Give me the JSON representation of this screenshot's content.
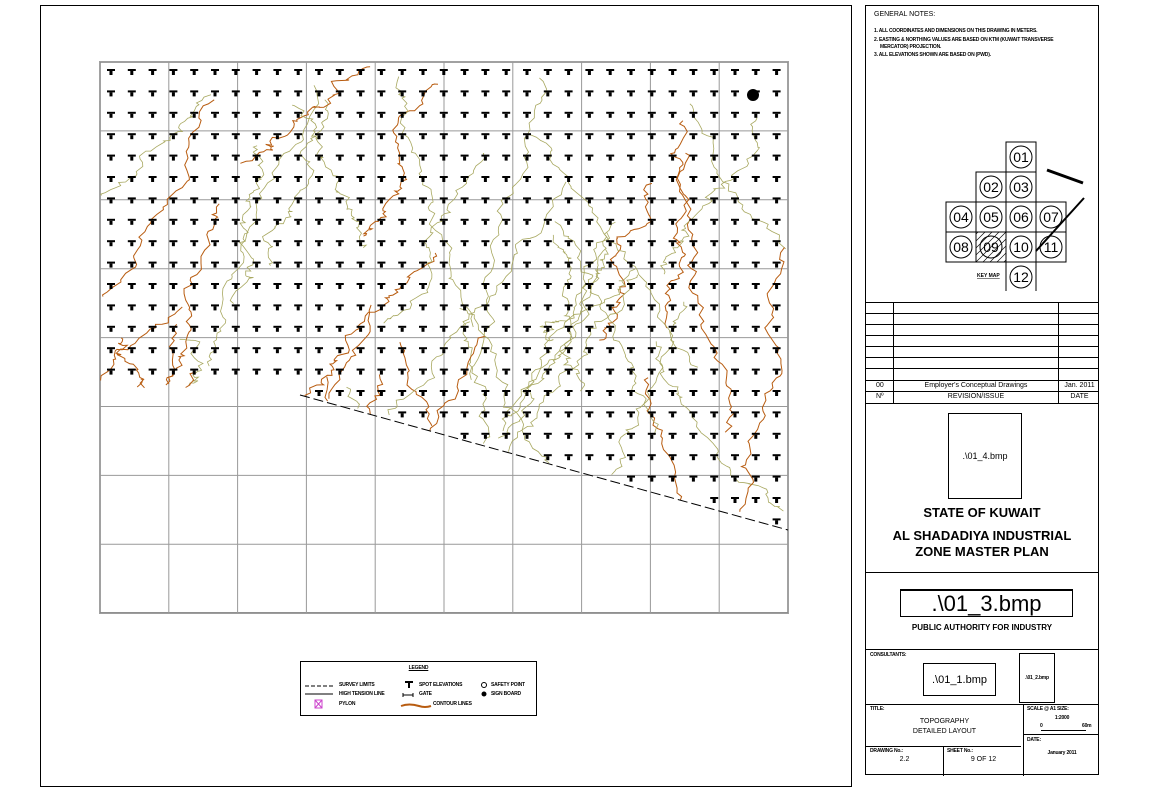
{
  "general_notes": {
    "heading": "GENERAL NOTES:",
    "items": [
      "1. ALL COORDINATES AND DIMENSIONS ON THIS DRAWING IN METERS.",
      "2. EASTING & NORTHING VALUES ARE BASED ON KTM (KUWAIT TRANSVERSE",
      "MERCATOR) PROJECTION.",
      "3. ALL ELEVATIONS SHOWN ARE BASED ON (PWD)."
    ]
  },
  "key_map": {
    "label": "KEY MAP",
    "sheets": [
      "01",
      "02",
      "03",
      "04",
      "05",
      "06",
      "07",
      "08",
      "09",
      "10",
      "11",
      "12"
    ],
    "current_sheet": "09"
  },
  "revision_table": {
    "rows": [
      {
        "no": "00",
        "description": "Employer's Conceptual Drawings",
        "date": "Jan. 2011"
      }
    ],
    "headers": {
      "no": "Nº",
      "description": "REVISION/ISSUE",
      "date": "DATE"
    }
  },
  "client": {
    "logo_placeholder": ".\\01_4.bmp",
    "line1": "STATE OF KUWAIT",
    "line2": "AL SHADADIYA INDUSTRIAL",
    "line3": "ZONE MASTER PLAN"
  },
  "authority": {
    "logo_placeholder": ".\\01_3.bmp",
    "name": "PUBLIC AUTHORITY FOR INDUSTRY"
  },
  "consultants": {
    "label": "CONSULTANTS:",
    "logo_placeholder": ".\\01_1.bmp",
    "stamp_placeholder": ".\\01_2.bmp"
  },
  "title_block": {
    "title_label": "TITLE:",
    "title_line1": "TOPOGRAPHY",
    "title_line2": "DETAILED LAYOUT",
    "scale_label": "SCALE @ A1 SIZE:",
    "scale_value": "1:2000",
    "scale_bar_start": "0",
    "scale_bar_end": "60m",
    "date_label": "DATE:",
    "date_value": "January 2011",
    "drawing_no_label": "DRAWING No.:",
    "drawing_no": "2.2",
    "sheet_no_label": "SHEET No.:",
    "sheet_no": "9 OF 12"
  },
  "legend": {
    "title": "LEGEND",
    "items": [
      {
        "symbol": "dashed-line",
        "label": "SURVEY LIMITS"
      },
      {
        "symbol": "tension-line",
        "label": "HIGH TENSION LINE"
      },
      {
        "symbol": "pylon-icon",
        "label": "PYLON"
      },
      {
        "symbol": "spot-elevation-icon",
        "label": "SPOT ELEVATIONS"
      },
      {
        "symbol": "gate-icon",
        "label": "GATE"
      },
      {
        "symbol": "contour-icon",
        "label": "CONTOUR LINES"
      },
      {
        "symbol": "safety-point-icon",
        "label": "SAFETY POINT"
      },
      {
        "symbol": "sign-board-icon",
        "label": "SIGN BOARD"
      }
    ]
  },
  "colors": {
    "contour_major": "#b85c10",
    "contour_minor": "#a8a860",
    "grid": "#999999",
    "pylon": "#cc44cc"
  }
}
